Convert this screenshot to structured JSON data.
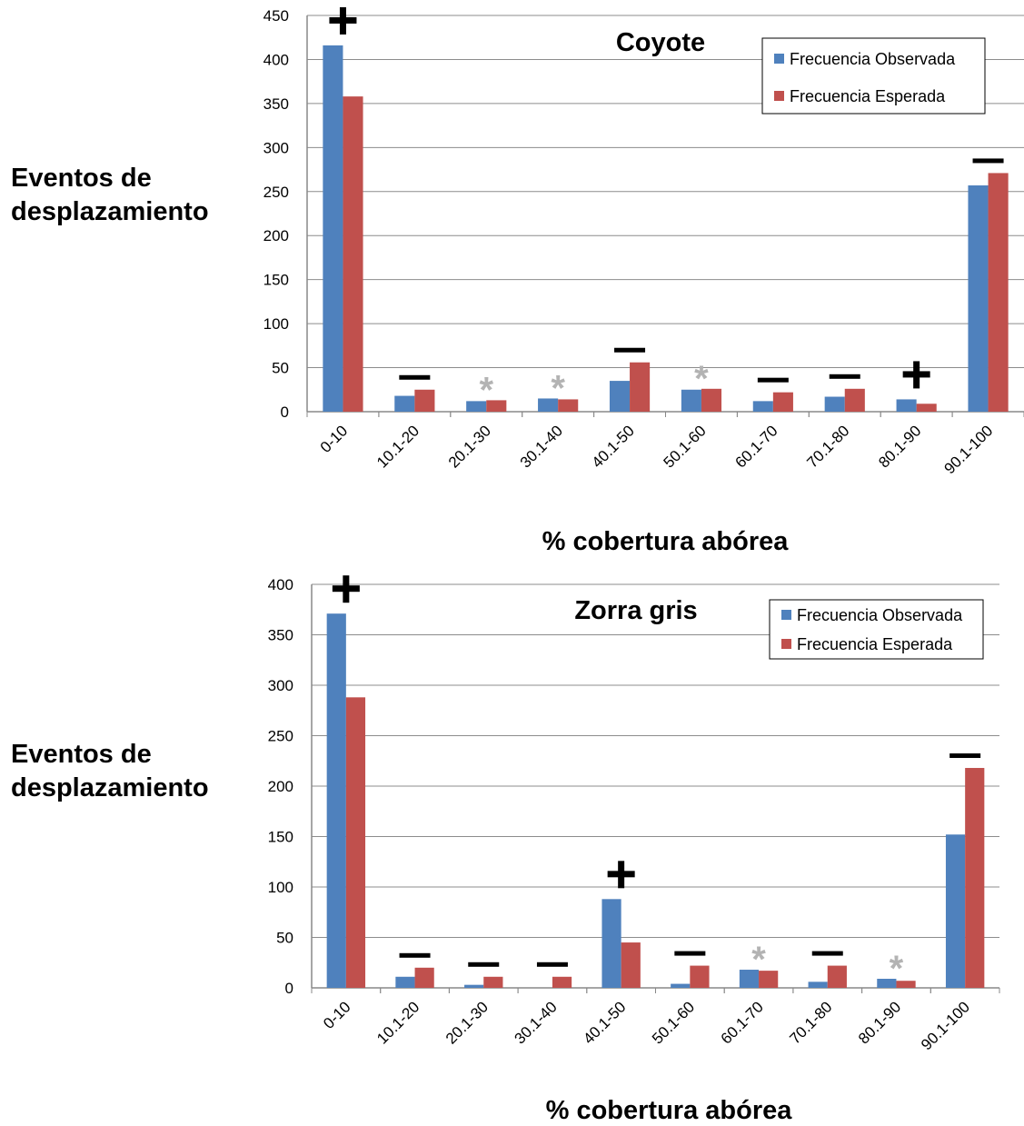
{
  "chart_data": [
    {
      "type": "bar",
      "title": "Coyote",
      "ylabel": "Eventos de\ndesplazamiento",
      "xlabel": "% cobertura abórea",
      "categories": [
        "0-10",
        "10.1-20",
        "20.1-30",
        "30.1-40",
        "40.1-50",
        "50.1-60",
        "60.1-70",
        "70.1-80",
        "80.1-90",
        "90.1-100"
      ],
      "series": [
        {
          "name": "Frecuencia Observada",
          "color": "#4f81bd",
          "values": [
            416,
            18,
            12,
            15,
            35,
            25,
            12,
            17,
            14,
            257
          ]
        },
        {
          "name": "Frecuencia Esperada",
          "color": "#c0504d",
          "values": [
            358,
            25,
            13,
            14,
            56,
            26,
            22,
            26,
            9,
            271
          ]
        }
      ],
      "markers": [
        "+",
        "−",
        "*",
        "*",
        "−",
        "*",
        "−",
        "−",
        "+",
        "−"
      ],
      "ylim": [
        0,
        450
      ],
      "yticks": [
        0,
        50,
        100,
        150,
        200,
        250,
        300,
        350,
        400,
        450
      ],
      "grid": true,
      "legend_position": "top-right"
    },
    {
      "type": "bar",
      "title": "Zorra gris",
      "ylabel": "Eventos de\ndesplazamiento",
      "xlabel": "% cobertura abórea",
      "categories": [
        "0-10",
        "10.1-20",
        "20.1-30",
        "30.1-40",
        "40.1-50",
        "50.1-60",
        "60.1-70",
        "70.1-80",
        "80.1-90",
        "90.1-100"
      ],
      "series": [
        {
          "name": "Frecuencia Observada",
          "color": "#4f81bd",
          "values": [
            371,
            11,
            3,
            0,
            88,
            4,
            18,
            6,
            9,
            152
          ]
        },
        {
          "name": "Frecuencia Esperada",
          "color": "#c0504d",
          "values": [
            288,
            20,
            11,
            11,
            45,
            22,
            17,
            22,
            7,
            218
          ]
        }
      ],
      "markers": [
        "+",
        "−",
        "−",
        "−",
        "+",
        "−",
        "*",
        "−",
        "*",
        "−"
      ],
      "ylim": [
        0,
        400
      ],
      "yticks": [
        0,
        50,
        100,
        150,
        200,
        250,
        300,
        350,
        400
      ],
      "grid": true,
      "legend_position": "top-right"
    }
  ]
}
